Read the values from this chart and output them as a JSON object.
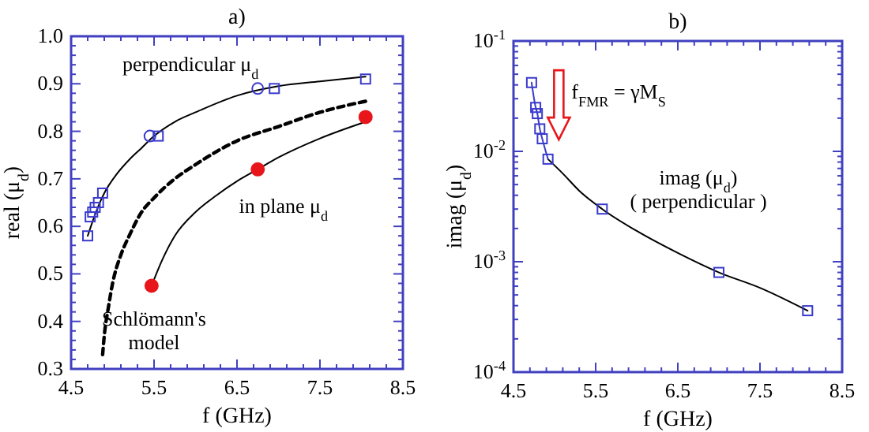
{
  "chart_data": [
    {
      "type": "scatter",
      "title": "a)",
      "xlabel": "f (GHz)",
      "ylabel": "real (μ$_{d}$)",
      "xlim": [
        4.5,
        8.5
      ],
      "xticks": [
        4.5,
        5.5,
        6.5,
        7.5,
        8.5
      ],
      "ylim": [
        0.3,
        1.0
      ],
      "yticks": [
        {
          "value": 0.3,
          "label": "0.3"
        },
        {
          "value": 0.4,
          "label": "0.4"
        },
        {
          "value": 0.5,
          "label": "0.5"
        },
        {
          "value": 0.6,
          "label": "0.6"
        },
        {
          "value": 0.7,
          "label": "0.7"
        },
        {
          "value": 0.8,
          "label": "0.8"
        },
        {
          "value": 0.9,
          "label": "0.9"
        },
        {
          "value": 1.0,
          "label": "1.0"
        }
      ],
      "grid": false,
      "series": [
        {
          "type": "line",
          "color": "#000000",
          "line_style": "solid",
          "marker": "none",
          "x": [
            4.7,
            4.8,
            4.9,
            5.05,
            5.2,
            5.35,
            5.5,
            5.75,
            6.0,
            6.5,
            7.0,
            7.5,
            8.05
          ],
          "values": [
            0.58,
            0.63,
            0.67,
            0.71,
            0.74,
            0.765,
            0.79,
            0.82,
            0.84,
            0.875,
            0.895,
            0.905,
            0.915
          ]
        },
        {
          "type": "line",
          "color": "#000000",
          "line_style": "dashed",
          "marker": "none",
          "x": [
            4.88,
            4.9,
            4.95,
            5.0,
            5.1,
            5.2,
            5.35,
            5.5,
            5.75,
            6.0,
            6.5,
            7.0,
            7.5,
            8.1
          ],
          "values": [
            0.33,
            0.37,
            0.43,
            0.48,
            0.54,
            0.58,
            0.63,
            0.66,
            0.7,
            0.73,
            0.78,
            0.81,
            0.84,
            0.865
          ]
        },
        {
          "type": "line",
          "color": "#000000",
          "line_style": "solid",
          "marker": "none",
          "x": [
            5.47,
            5.6,
            5.75,
            6.0,
            6.25,
            6.5,
            6.75,
            7.0,
            7.5,
            8.05
          ],
          "values": [
            0.475,
            0.53,
            0.58,
            0.63,
            0.665,
            0.695,
            0.72,
            0.745,
            0.785,
            0.82
          ]
        },
        {
          "type": "scatter",
          "color": "#3a3acc",
          "marker": "square",
          "x": [
            4.7,
            4.73,
            4.76,
            4.79,
            4.83,
            4.88,
            5.55,
            6.95,
            8.05
          ],
          "values": [
            0.58,
            0.62,
            0.63,
            0.64,
            0.65,
            0.67,
            0.79,
            0.89,
            0.91
          ]
        },
        {
          "type": "scatter",
          "color": "#3a3acc",
          "marker": "circle",
          "x": [
            5.45,
            6.75
          ],
          "values": [
            0.79,
            0.89
          ]
        },
        {
          "type": "scatter",
          "color": "#e8161b",
          "marker": "circle",
          "x": [
            5.47,
            6.75,
            8.05
          ],
          "values": [
            0.475,
            0.72,
            0.83
          ]
        }
      ],
      "annotations": [
        "perpendicular μ$_{d}$",
        "in plane μ$_{d}$",
        "Schlömann's\nmodel"
      ]
    },
    {
      "type": "scatter",
      "title": "b)",
      "xlabel": "f (GHz)",
      "ylabel": "imag (μ$_{d}$)",
      "log": "y",
      "xlim": [
        4.5,
        8.5
      ],
      "xticks": [
        4.5,
        5.5,
        6.5,
        7.5,
        8.5
      ],
      "ylim": [
        0.0001,
        0.1
      ],
      "yticks": [
        {
          "value": 0.0001,
          "label": "10$^{-4}$"
        },
        {
          "value": 0.001,
          "label": "10$^{-3}$"
        },
        {
          "value": 0.01,
          "label": "10$^{-2}$"
        },
        {
          "value": 0.1,
          "label": "10$^{-1}$"
        }
      ],
      "grid": false,
      "series": [
        {
          "type": "line",
          "color": "#000000",
          "line_style": "solid",
          "marker": "none",
          "x": [
            4.92,
            5.1,
            5.3,
            5.58,
            6.0,
            6.5,
            7.0,
            7.5,
            8.08
          ],
          "values": [
            0.0085,
            0.0063,
            0.0044,
            0.003,
            0.0019,
            0.0012,
            0.0008,
            0.00058,
            0.00036
          ]
        },
        {
          "type": "line",
          "color": "#3a3acc",
          "line_style": "solid",
          "marker": "square",
          "x": [
            4.72,
            4.77,
            4.79,
            4.82,
            4.85,
            4.92
          ],
          "values": [
            0.042,
            0.025,
            0.022,
            0.016,
            0.013,
            0.0085
          ]
        },
        {
          "type": "scatter",
          "color": "#3a3acc",
          "marker": "square",
          "x": [
            5.58,
            7.0,
            8.08
          ],
          "values": [
            0.003,
            0.0008,
            0.00036
          ]
        }
      ],
      "annotations": [
        "f$_{FMR}$ = γM$_{S}$",
        "imag (μ$_{d}$)\n( perpendicular )"
      ]
    }
  ]
}
